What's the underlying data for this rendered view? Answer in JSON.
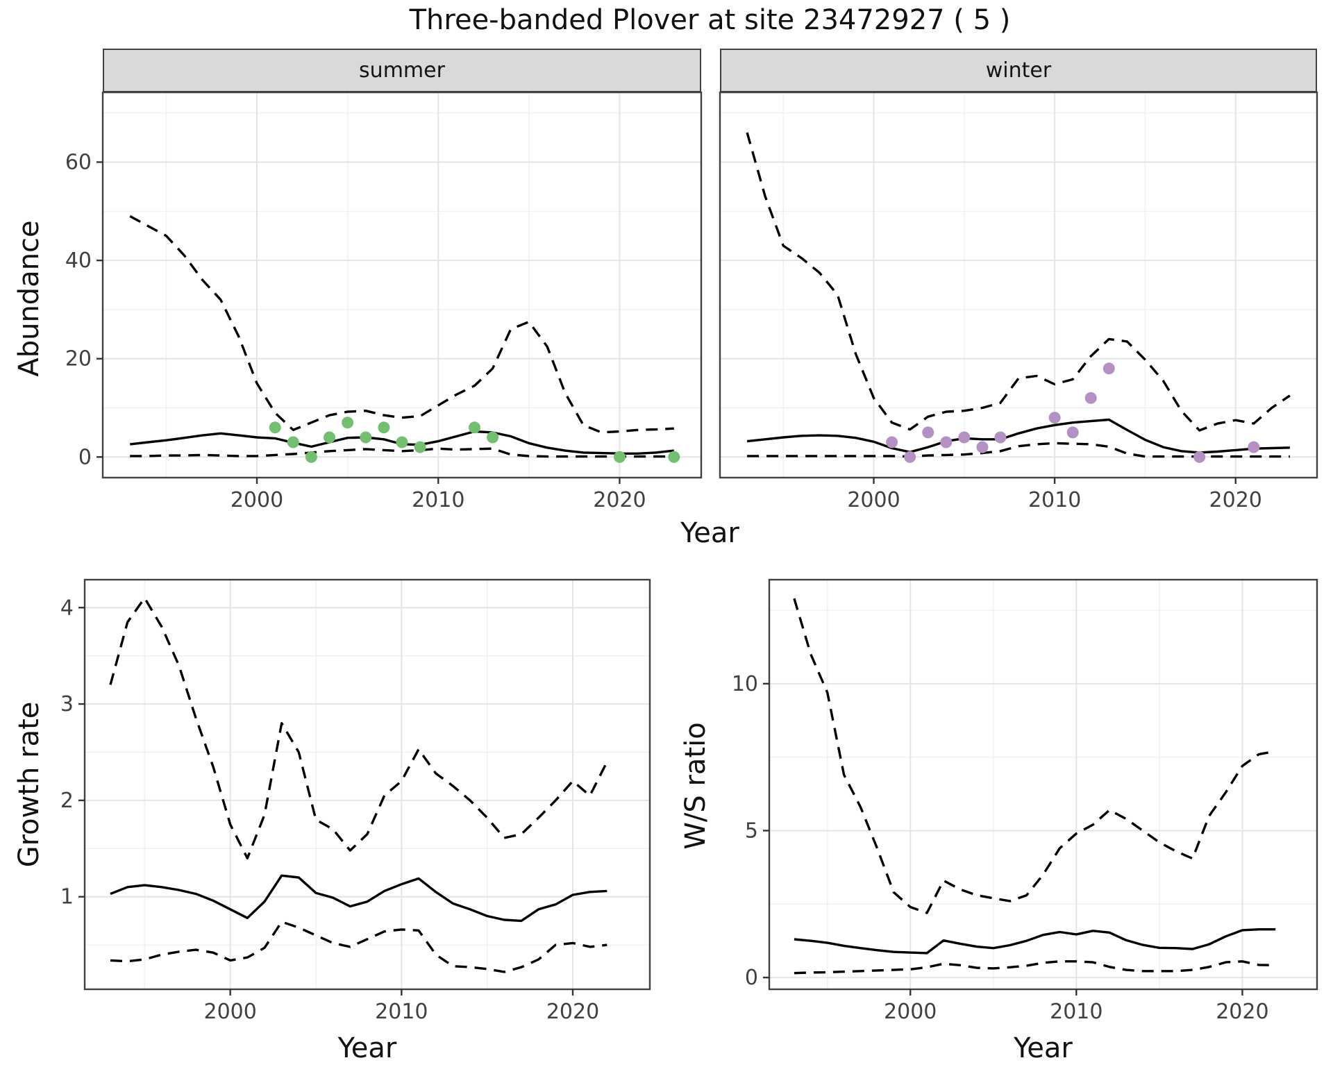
{
  "title": "Three-banded Plover at site 23472927 ( 5 )",
  "facets": [
    "summer",
    "winter"
  ],
  "axis_labels": {
    "abundance": "Abundance",
    "year": "Year",
    "growth_rate": "Growth rate",
    "ws_ratio": "W/S ratio"
  },
  "colors": {
    "summer_points": "#72c06f",
    "winter_points": "#b490c4",
    "lines": "#000000",
    "strip_background": "#d9d9d9",
    "panel_border": "#404040",
    "major_grid": "#e4e4e4",
    "minor_grid": "#f0f0f0"
  },
  "chart_data": [
    {
      "id": "summer",
      "type": "line",
      "facet": "summer",
      "xlabel": "Year",
      "ylabel": "Abundance",
      "xlim": [
        1991.5,
        2024.5
      ],
      "ylim": [
        -4.2,
        74.2
      ],
      "x_ticks": [
        2000,
        2010,
        2020
      ],
      "x_minor": [
        1995,
        2005,
        2015
      ],
      "y_ticks": [
        0,
        20,
        40,
        60
      ],
      "y_minor": [
        10,
        30,
        50,
        70
      ],
      "legend": "none",
      "grid": true,
      "series": [
        {
          "name": "median",
          "style": "solid",
          "x": [
            1993,
            1994,
            1995,
            1996,
            1997,
            1998,
            1999,
            2000,
            2001,
            2002,
            2003,
            2004,
            2005,
            2006,
            2007,
            2008,
            2009,
            2010,
            2011,
            2012,
            2013,
            2014,
            2015,
            2016,
            2017,
            2018,
            2019,
            2020,
            2021,
            2022,
            2023
          ],
          "y": [
            2.6,
            3.0,
            3.4,
            3.9,
            4.4,
            4.8,
            4.4,
            4.0,
            3.8,
            2.9,
            2.1,
            3.0,
            3.9,
            4.0,
            3.6,
            2.6,
            2.5,
            3.2,
            4.2,
            5.2,
            5.0,
            4.2,
            2.8,
            1.9,
            1.3,
            0.9,
            0.8,
            0.7,
            0.7,
            0.9,
            1.3
          ]
        },
        {
          "name": "ci_upper",
          "style": "dashed",
          "x": [
            1993,
            1994,
            1995,
            1996,
            1997,
            1998,
            1999,
            2000,
            2001,
            2002,
            2003,
            2004,
            2005,
            2006,
            2007,
            2008,
            2009,
            2010,
            2011,
            2012,
            2013,
            2014,
            2015,
            2016,
            2017,
            2018,
            2019,
            2020,
            2021,
            2022,
            2023
          ],
          "y": [
            49,
            47,
            45,
            41,
            36,
            32,
            24.5,
            15,
            9,
            5.5,
            7,
            8.5,
            9.2,
            9.4,
            8.5,
            8.0,
            8.3,
            10.5,
            12.7,
            14.5,
            18,
            26,
            27.5,
            22.5,
            13,
            6.5,
            5.0,
            5.2,
            5.5,
            5.6,
            5.8
          ]
        },
        {
          "name": "ci_lower",
          "style": "dashed",
          "x": [
            1993,
            1994,
            1995,
            1996,
            1997,
            1998,
            1999,
            2000,
            2001,
            2002,
            2003,
            2004,
            2005,
            2006,
            2007,
            2008,
            2009,
            2010,
            2011,
            2012,
            2013,
            2014,
            2015,
            2016,
            2017,
            2018,
            2019,
            2020,
            2021,
            2022,
            2023
          ],
          "y": [
            0.2,
            0.2,
            0.3,
            0.3,
            0.4,
            0.3,
            0.2,
            0.2,
            0.4,
            0.6,
            0.9,
            1.2,
            1.4,
            1.6,
            1.4,
            1.2,
            1.4,
            1.7,
            1.5,
            1.6,
            1.7,
            0.5,
            0.2,
            0.1,
            0.1,
            0.1,
            0.1,
            0.1,
            0.1,
            0.1,
            0.1
          ]
        },
        {
          "name": "observed",
          "style": "points",
          "color": "#72c06f",
          "x": [
            2001,
            2002,
            2003,
            2004,
            2005,
            2006,
            2007,
            2008,
            2009,
            2012,
            2013,
            2020,
            2023
          ],
          "y": [
            6,
            3,
            0,
            4,
            7,
            4,
            6,
            3,
            2,
            6,
            4,
            0,
            0
          ]
        }
      ]
    },
    {
      "id": "winter",
      "type": "line",
      "facet": "winter",
      "xlabel": "Year",
      "ylabel": "Abundance",
      "xlim": [
        1991.5,
        2024.5
      ],
      "ylim": [
        -4.2,
        74.2
      ],
      "x_ticks": [
        2000,
        2010,
        2020
      ],
      "x_minor": [
        1995,
        2005,
        2015
      ],
      "y_ticks": [
        0,
        20,
        40,
        60
      ],
      "y_minor": [
        10,
        30,
        50,
        70
      ],
      "legend": "none",
      "grid": true,
      "series": [
        {
          "name": "median",
          "style": "solid",
          "x": [
            1993,
            1994,
            1995,
            1996,
            1997,
            1998,
            1999,
            2000,
            2001,
            2002,
            2003,
            2004,
            2005,
            2006,
            2007,
            2008,
            2009,
            2010,
            2011,
            2012,
            2013,
            2014,
            2015,
            2016,
            2017,
            2018,
            2019,
            2020,
            2021,
            2022,
            2023
          ],
          "y": [
            3.2,
            3.6,
            4.0,
            4.3,
            4.4,
            4.3,
            3.9,
            3.1,
            1.8,
            1.0,
            2.0,
            3.2,
            3.8,
            3.6,
            3.6,
            4.8,
            5.8,
            6.5,
            7.0,
            7.3,
            7.6,
            5.5,
            3.5,
            2.0,
            1.2,
            0.9,
            1.1,
            1.4,
            1.7,
            1.8,
            1.9
          ]
        },
        {
          "name": "ci_upper",
          "style": "dashed",
          "x": [
            1993,
            1994,
            1995,
            1996,
            1997,
            1998,
            1999,
            2000,
            2001,
            2002,
            2003,
            2004,
            2005,
            2006,
            2007,
            2008,
            2009,
            2010,
            2011,
            2012,
            2013,
            2014,
            2015,
            2016,
            2017,
            2018,
            2019,
            2020,
            2021,
            2022,
            2023
          ],
          "y": [
            66,
            53,
            43,
            40.5,
            37.5,
            33,
            21,
            12,
            7,
            5.6,
            8.2,
            9.2,
            9.4,
            10,
            11,
            16,
            16.5,
            14.8,
            15.8,
            20.5,
            24,
            23.5,
            19.8,
            15.5,
            9.4,
            5.4,
            6.8,
            7.5,
            6.8,
            10,
            12.5
          ]
        },
        {
          "name": "ci_lower",
          "style": "dashed",
          "x": [
            1993,
            1994,
            1995,
            1996,
            1997,
            1998,
            1999,
            2000,
            2001,
            2002,
            2003,
            2004,
            2005,
            2006,
            2007,
            2008,
            2009,
            2010,
            2011,
            2012,
            2013,
            2014,
            2015,
            2016,
            2017,
            2018,
            2019,
            2020,
            2021,
            2022,
            2023
          ],
          "y": [
            0.2,
            0.2,
            0.2,
            0.2,
            0.2,
            0.2,
            0.2,
            0.2,
            0.2,
            0.1,
            0.3,
            0.4,
            0.5,
            0.8,
            1.2,
            2.2,
            2.6,
            2.8,
            2.7,
            2.6,
            2.1,
            0.7,
            0.1,
            0.1,
            0.1,
            0.1,
            0.1,
            0.1,
            0.1,
            0.1,
            0.1
          ]
        },
        {
          "name": "observed",
          "style": "points",
          "color": "#b490c4",
          "x": [
            2001,
            2002,
            2003,
            2004,
            2005,
            2006,
            2007,
            2010,
            2011,
            2012,
            2013,
            2018,
            2021
          ],
          "y": [
            3,
            0,
            5,
            3,
            4,
            2,
            4,
            8,
            5,
            12,
            18,
            0,
            2
          ]
        }
      ]
    },
    {
      "id": "growth",
      "type": "line",
      "facet": null,
      "xlabel": "Year",
      "ylabel": "Growth rate",
      "xlim": [
        1991.5,
        2024.5
      ],
      "ylim": [
        0.04,
        4.29
      ],
      "x_ticks": [
        2000,
        2010,
        2020
      ],
      "x_minor": [
        1995,
        2005,
        2015
      ],
      "y_ticks": [
        1,
        2,
        3,
        4
      ],
      "y_minor": [
        0.5,
        1.5,
        2.5,
        3.5
      ],
      "legend": "none",
      "grid": true,
      "series": [
        {
          "name": "median",
          "style": "solid",
          "x": [
            1993,
            1994,
            1995,
            1996,
            1997,
            1998,
            1999,
            2000,
            2001,
            2002,
            2003,
            2004,
            2005,
            2006,
            2007,
            2008,
            2009,
            2010,
            2011,
            2012,
            2013,
            2014,
            2015,
            2016,
            2017,
            2018,
            2019,
            2020,
            2021,
            2022
          ],
          "y": [
            1.03,
            1.1,
            1.12,
            1.1,
            1.07,
            1.03,
            0.96,
            0.87,
            0.78,
            0.95,
            1.22,
            1.2,
            1.04,
            0.99,
            0.9,
            0.95,
            1.06,
            1.13,
            1.19,
            1.05,
            0.93,
            0.87,
            0.8,
            0.76,
            0.75,
            0.87,
            0.92,
            1.02,
            1.05,
            1.06
          ]
        },
        {
          "name": "ci_upper",
          "style": "dashed",
          "x": [
            1993,
            1994,
            1995,
            1996,
            1997,
            1998,
            1999,
            2000,
            2001,
            2002,
            2003,
            2004,
            2005,
            2006,
            2007,
            2008,
            2009,
            2010,
            2011,
            2012,
            2013,
            2014,
            2015,
            2016,
            2017,
            2018,
            2019,
            2020,
            2021,
            2022
          ],
          "y": [
            3.2,
            3.85,
            4.1,
            3.8,
            3.4,
            2.85,
            2.35,
            1.75,
            1.4,
            1.85,
            2.8,
            2.5,
            1.8,
            1.7,
            1.48,
            1.65,
            2.05,
            2.2,
            2.53,
            2.28,
            2.15,
            2.0,
            1.82,
            1.61,
            1.65,
            1.82,
            2.0,
            2.2,
            2.05,
            2.4
          ]
        },
        {
          "name": "ci_lower",
          "style": "dashed",
          "x": [
            1993,
            1994,
            1995,
            1996,
            1997,
            1998,
            1999,
            2000,
            2001,
            2002,
            2003,
            2004,
            2005,
            2006,
            2007,
            2008,
            2009,
            2010,
            2011,
            2012,
            2013,
            2014,
            2015,
            2016,
            2017,
            2018,
            2019,
            2020,
            2021,
            2022
          ],
          "y": [
            0.34,
            0.33,
            0.35,
            0.4,
            0.43,
            0.45,
            0.42,
            0.34,
            0.37,
            0.47,
            0.74,
            0.68,
            0.6,
            0.52,
            0.48,
            0.56,
            0.64,
            0.66,
            0.65,
            0.4,
            0.28,
            0.27,
            0.25,
            0.22,
            0.27,
            0.35,
            0.5,
            0.52,
            0.48,
            0.5
          ]
        }
      ]
    },
    {
      "id": "ws",
      "type": "line",
      "facet": null,
      "xlabel": "Year",
      "ylabel": "W/S ratio",
      "xlim": [
        1991.5,
        2024.5
      ],
      "ylim": [
        -0.4,
        13.54
      ],
      "x_ticks": [
        2000,
        2010,
        2020
      ],
      "x_minor": [
        1995,
        2005,
        2015
      ],
      "y_ticks": [
        0,
        5,
        10
      ],
      "y_minor": [
        2.5,
        7.5,
        12.5
      ],
      "legend": "none",
      "grid": true,
      "series": [
        {
          "name": "median",
          "style": "solid",
          "x": [
            1993,
            1994,
            1995,
            1996,
            1997,
            1998,
            1999,
            2000,
            2001,
            2002,
            2003,
            2004,
            2005,
            2006,
            2007,
            2008,
            2009,
            2010,
            2011,
            2012,
            2013,
            2014,
            2015,
            2016,
            2017,
            2018,
            2019,
            2020,
            2021,
            2022
          ],
          "y": [
            1.3,
            1.25,
            1.18,
            1.08,
            1.0,
            0.93,
            0.87,
            0.85,
            0.83,
            1.26,
            1.15,
            1.05,
            1.0,
            1.1,
            1.25,
            1.45,
            1.55,
            1.47,
            1.59,
            1.53,
            1.27,
            1.11,
            1.01,
            1.0,
            0.97,
            1.13,
            1.4,
            1.61,
            1.64,
            1.64
          ]
        },
        {
          "name": "ci_upper",
          "style": "dashed",
          "x": [
            1993,
            1994,
            1995,
            1996,
            1997,
            1998,
            1999,
            2000,
            2001,
            2002,
            2003,
            2004,
            2005,
            2006,
            2007,
            2008,
            2009,
            2010,
            2011,
            2012,
            2013,
            2014,
            2015,
            2016,
            2017,
            2018,
            2019,
            2020,
            2021,
            2022
          ],
          "y": [
            12.9,
            11.0,
            9.7,
            6.9,
            5.8,
            4.4,
            2.9,
            2.4,
            2.2,
            3.3,
            3.0,
            2.8,
            2.7,
            2.6,
            2.8,
            3.5,
            4.4,
            4.9,
            5.2,
            5.7,
            5.4,
            5.0,
            4.6,
            4.3,
            4.05,
            5.5,
            6.3,
            7.2,
            7.6,
            7.7
          ]
        },
        {
          "name": "ci_lower",
          "style": "dashed",
          "x": [
            1993,
            1994,
            1995,
            1996,
            1997,
            1998,
            1999,
            2000,
            2001,
            2002,
            2003,
            2004,
            2005,
            2006,
            2007,
            2008,
            2009,
            2010,
            2011,
            2012,
            2013,
            2014,
            2015,
            2016,
            2017,
            2018,
            2019,
            2020,
            2021,
            2022
          ],
          "y": [
            0.15,
            0.17,
            0.18,
            0.2,
            0.22,
            0.24,
            0.26,
            0.28,
            0.35,
            0.47,
            0.42,
            0.33,
            0.31,
            0.35,
            0.4,
            0.5,
            0.55,
            0.55,
            0.52,
            0.36,
            0.26,
            0.22,
            0.22,
            0.22,
            0.26,
            0.36,
            0.52,
            0.55,
            0.43,
            0.42
          ]
        }
      ]
    }
  ]
}
